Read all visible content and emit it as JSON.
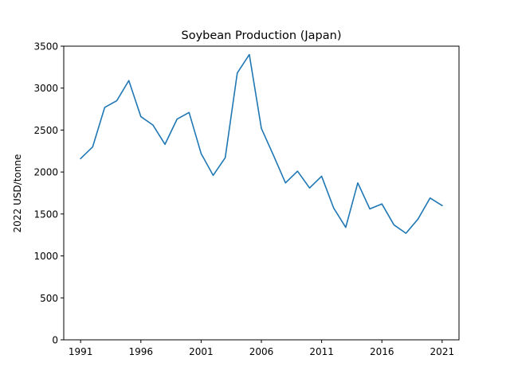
{
  "chart_data": {
    "type": "line",
    "title": "Soybean Production (Japan)",
    "xlabel": "",
    "ylabel": "2022 USD/tonne",
    "xlim": [
      1989.6,
      2022.4
    ],
    "ylim": [
      0,
      3500
    ],
    "x_ticks": [
      1991,
      1996,
      2001,
      2006,
      2011,
      2016,
      2021
    ],
    "y_ticks": [
      0,
      500,
      1000,
      1500,
      2000,
      2500,
      3000,
      3500
    ],
    "grid": false,
    "line_color": "#1f77b4",
    "series": [
      {
        "x": [
          1991,
          1992,
          1993,
          1994,
          1995,
          1996,
          1997,
          1998,
          1999,
          2000,
          2001,
          2002,
          2003,
          2004,
          2005,
          2006,
          2007,
          2008,
          2009,
          2010,
          2011,
          2012,
          2013,
          2014,
          2015,
          2016,
          2017,
          2018,
          2019,
          2020,
          2021
        ],
        "values": [
          2160,
          2300,
          2770,
          2850,
          3090,
          2660,
          2560,
          2330,
          2630,
          2710,
          2220,
          1960,
          2170,
          3180,
          3400,
          2520,
          2200,
          1870,
          2010,
          1810,
          1950,
          1570,
          1340,
          1870,
          1560,
          1620,
          1370,
          1270,
          1440,
          1690,
          1600
        ]
      }
    ]
  }
}
